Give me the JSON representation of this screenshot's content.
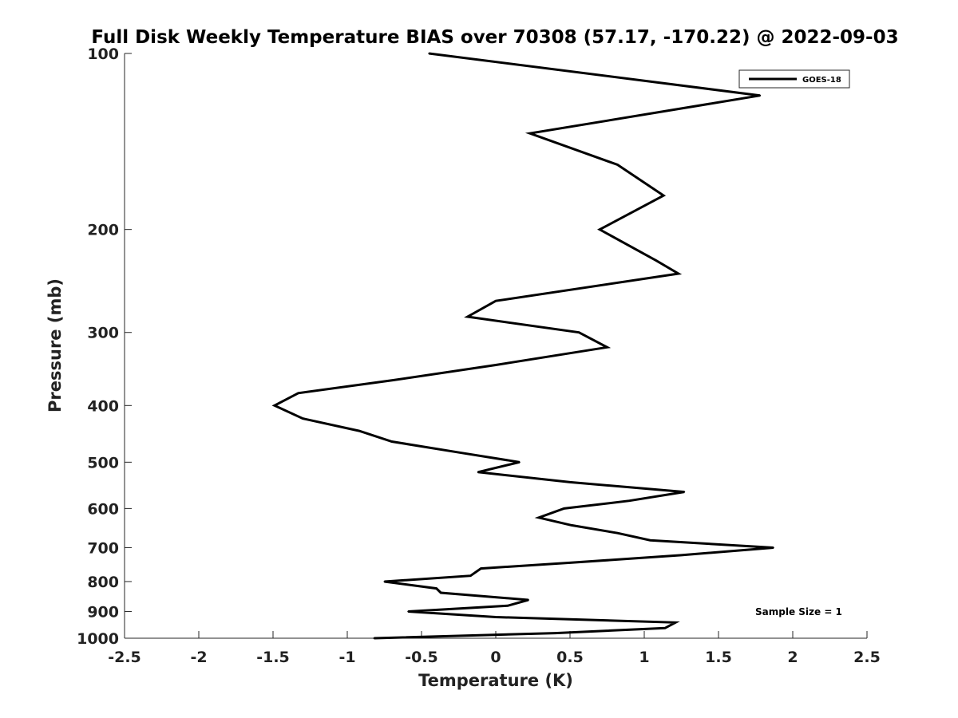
{
  "chart_data": {
    "type": "line",
    "title": "Full Disk Weekly Temperature BIAS over 70308 (57.17, -170.22) @ 2022-09-03",
    "xlabel": "Temperature (K)",
    "ylabel": "Pressure (mb)",
    "xlim": [
      -2.5,
      2.5
    ],
    "ylim": [
      1000,
      100
    ],
    "yscale": "log",
    "y_reversed": true,
    "grid": false,
    "legend_position": "top-right",
    "x_ticks": [
      "-2.5",
      "-2",
      "-1.5",
      "-1",
      "-0.5",
      "0",
      "0.5",
      "1",
      "1.5",
      "2",
      "2.5"
    ],
    "y_ticks": [
      "100",
      "200",
      "300",
      "400",
      "500",
      "600",
      "700",
      "800",
      "900",
      "1000"
    ],
    "annotation": "Sample Size = 1",
    "series": [
      {
        "name": "GOES-18",
        "color": "#000000",
        "points": [
          {
            "x": -0.45,
            "y": 100
          },
          {
            "x": 1.78,
            "y": 118
          },
          {
            "x": 0.23,
            "y": 137
          },
          {
            "x": 0.82,
            "y": 155
          },
          {
            "x": 1.13,
            "y": 175
          },
          {
            "x": 0.7,
            "y": 200
          },
          {
            "x": 1.08,
            "y": 226
          },
          {
            "x": 1.23,
            "y": 238
          },
          {
            "x": 0.0,
            "y": 265
          },
          {
            "x": -0.19,
            "y": 282
          },
          {
            "x": 0.56,
            "y": 300
          },
          {
            "x": 0.75,
            "y": 318
          },
          {
            "x": 0.0,
            "y": 341
          },
          {
            "x": -0.69,
            "y": 362
          },
          {
            "x": -1.33,
            "y": 381
          },
          {
            "x": -1.49,
            "y": 400
          },
          {
            "x": -1.3,
            "y": 421
          },
          {
            "x": -0.92,
            "y": 442
          },
          {
            "x": -0.7,
            "y": 461
          },
          {
            "x": -0.23,
            "y": 482
          },
          {
            "x": 0.16,
            "y": 500
          },
          {
            "x": -0.12,
            "y": 520
          },
          {
            "x": 0.5,
            "y": 541
          },
          {
            "x": 1.27,
            "y": 562
          },
          {
            "x": 0.9,
            "y": 582
          },
          {
            "x": 0.46,
            "y": 600
          },
          {
            "x": 0.29,
            "y": 622
          },
          {
            "x": 0.51,
            "y": 641
          },
          {
            "x": 0.82,
            "y": 661
          },
          {
            "x": 1.04,
            "y": 680
          },
          {
            "x": 1.87,
            "y": 700
          },
          {
            "x": 1.25,
            "y": 721
          },
          {
            "x": 0.5,
            "y": 743
          },
          {
            "x": -0.1,
            "y": 760
          },
          {
            "x": -0.17,
            "y": 782
          },
          {
            "x": -0.75,
            "y": 800
          },
          {
            "x": -0.4,
            "y": 822
          },
          {
            "x": -0.37,
            "y": 836
          },
          {
            "x": 0.22,
            "y": 860
          },
          {
            "x": 0.08,
            "y": 880
          },
          {
            "x": -0.59,
            "y": 900
          },
          {
            "x": 0.0,
            "y": 920
          },
          {
            "x": 1.21,
            "y": 940
          },
          {
            "x": 1.14,
            "y": 961
          },
          {
            "x": 0.4,
            "y": 980
          },
          {
            "x": -0.82,
            "y": 1000
          }
        ]
      }
    ]
  }
}
